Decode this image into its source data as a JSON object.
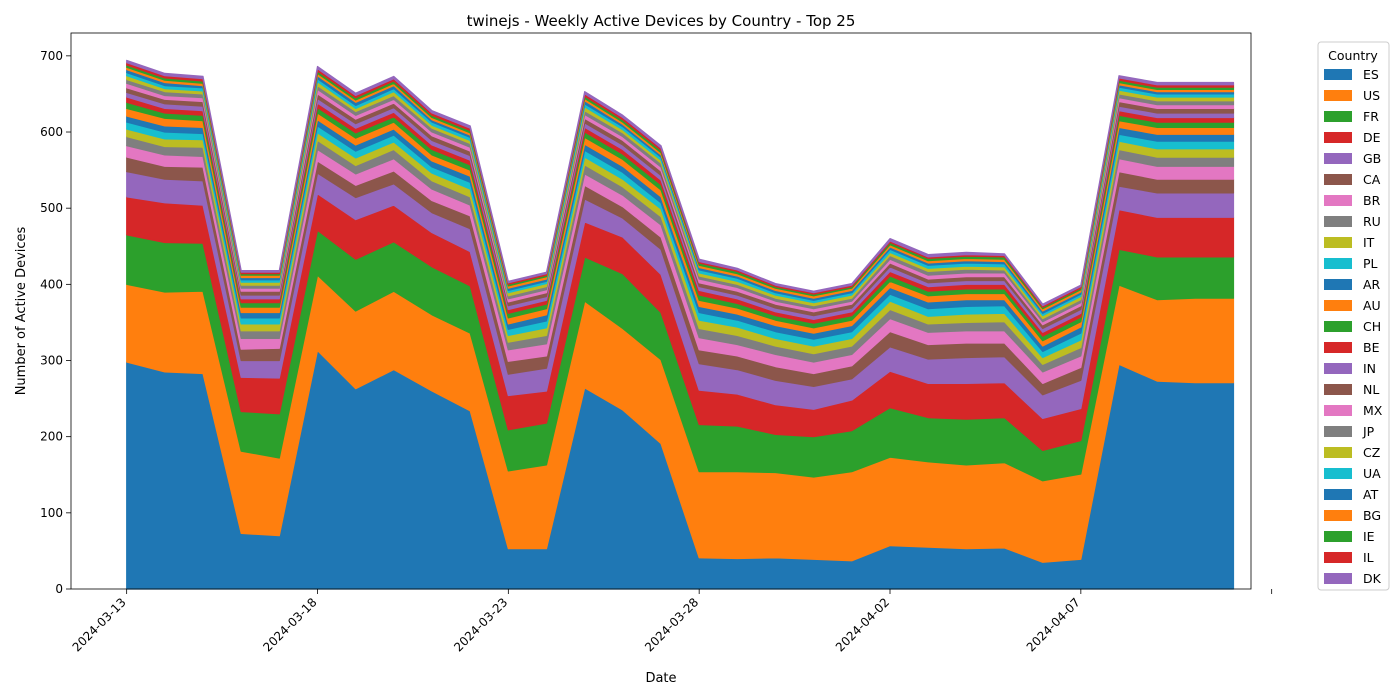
{
  "chart_data": {
    "type": "area",
    "stacked": true,
    "title": "twinejs - Weekly Active Devices by Country - Top 25",
    "xlabel": "Date",
    "ylabel": "Number of Active Devices",
    "ylim": [
      0,
      730
    ],
    "yticks": [
      0,
      100,
      200,
      300,
      400,
      500,
      600,
      700
    ],
    "xlim": [
      "2024-03-11T13:00",
      "2024-04-11T11:00"
    ],
    "xticks": [
      "2024-03-13",
      "2024-03-18",
      "2024-03-23",
      "2024-03-28",
      "2024-04-02",
      "2024-04-07",
      "2024-04-12"
    ],
    "xtick_labels": [
      "2024-03-13",
      "2024-03-18",
      "2024-03-23",
      "2024-03-28",
      "2024-04-02",
      "2024-04-07",
      ""
    ],
    "legend": {
      "title": "Country",
      "placement": "outside-right-top"
    },
    "x": [
      "2024-03-13",
      "2024-03-14",
      "2024-03-15",
      "2024-03-16",
      "2024-03-17",
      "2024-03-18",
      "2024-03-19",
      "2024-03-20",
      "2024-03-21",
      "2024-03-22",
      "2024-03-23",
      "2024-03-24",
      "2024-03-25",
      "2024-03-26",
      "2024-03-27",
      "2024-03-28",
      "2024-03-29",
      "2024-03-30",
      "2024-03-31",
      "2024-04-01",
      "2024-04-02",
      "2024-04-03",
      "2024-04-04",
      "2024-04-05",
      "2024-04-06",
      "2024-04-07",
      "2024-04-08",
      "2024-04-09",
      "2024-04-10",
      "2024-04-11"
    ],
    "series": [
      {
        "name": "ES",
        "color": "#1f77b4",
        "values": [
          298,
          285,
          283,
          73,
          70,
          313,
          263,
          288,
          260,
          234,
          53,
          53,
          264,
          235,
          191,
          41,
          40,
          41,
          39,
          37,
          57,
          55,
          53,
          54,
          35,
          39,
          295,
          273,
          271,
          271
        ]
      },
      {
        "name": "US",
        "color": "#ff7f0e",
        "values": [
          102,
          105,
          108,
          108,
          102,
          99,
          102,
          103,
          100,
          102,
          102,
          110,
          114,
          107,
          110,
          113,
          114,
          112,
          108,
          117,
          116,
          112,
          110,
          112,
          107,
          112,
          104,
          107,
          111,
          111
        ]
      },
      {
        "name": "FR",
        "color": "#2ca02c",
        "values": [
          65,
          65,
          63,
          52,
          58,
          59,
          68,
          65,
          63,
          62,
          54,
          55,
          58,
          72,
          62,
          62,
          60,
          50,
          53,
          54,
          65,
          58,
          60,
          59,
          40,
          44,
          47,
          56,
          54,
          54
        ]
      },
      {
        "name": "DE",
        "color": "#d62728",
        "values": [
          50,
          52,
          50,
          45,
          47,
          48,
          52,
          48,
          45,
          45,
          45,
          42,
          46,
          48,
          50,
          45,
          42,
          39,
          36,
          40,
          48,
          45,
          47,
          46,
          42,
          42,
          52,
          52,
          52,
          52
        ]
      },
      {
        "name": "GB",
        "color": "#9467bd",
        "values": [
          33,
          31,
          32,
          22,
          23,
          27,
          29,
          28,
          26,
          30,
          28,
          30,
          30,
          25,
          33,
          35,
          32,
          32,
          30,
          28,
          32,
          32,
          34,
          34,
          31,
          37,
          31,
          32,
          32,
          32
        ]
      },
      {
        "name": "CA",
        "color": "#8c564b",
        "values": [
          19,
          17,
          18,
          15,
          16,
          16,
          16,
          17,
          16,
          17,
          17,
          16,
          18,
          15,
          16,
          18,
          18,
          18,
          17,
          17,
          20,
          19,
          19,
          18,
          15,
          17,
          19,
          18,
          18,
          18
        ]
      },
      {
        "name": "BR",
        "color": "#e377c2",
        "values": [
          15,
          15,
          14,
          14,
          13,
          15,
          15,
          16,
          15,
          14,
          15,
          16,
          15,
          15,
          16,
          16,
          15,
          16,
          15,
          15,
          17,
          16,
          16,
          16,
          15,
          15,
          17,
          17,
          17,
          17
        ]
      },
      {
        "name": "RU",
        "color": "#7f7f7f",
        "values": [
          12,
          11,
          12,
          10,
          10,
          12,
          11,
          12,
          11,
          11,
          10,
          11,
          12,
          11,
          11,
          12,
          12,
          11,
          11,
          11,
          12,
          11,
          11,
          12,
          10,
          11,
          12,
          12,
          12,
          12
        ]
      },
      {
        "name": "IT",
        "color": "#bcbd22",
        "values": [
          10,
          10,
          10,
          9,
          9,
          10,
          10,
          10,
          10,
          10,
          9,
          10,
          10,
          10,
          10,
          11,
          11,
          10,
          10,
          10,
          11,
          10,
          11,
          11,
          9,
          10,
          11,
          11,
          11,
          11
        ]
      },
      {
        "name": "PL",
        "color": "#17becf",
        "values": [
          9,
          9,
          8,
          8,
          8,
          9,
          9,
          9,
          8,
          9,
          8,
          9,
          9,
          9,
          8,
          10,
          9,
          9,
          9,
          9,
          9,
          10,
          10,
          10,
          8,
          9,
          9,
          10,
          10,
          10
        ]
      },
      {
        "name": "AR",
        "color": "#1f77b4",
        "values": [
          8,
          8,
          8,
          7,
          7,
          8,
          8,
          8,
          8,
          8,
          7,
          8,
          8,
          8,
          8,
          8,
          8,
          8,
          8,
          8,
          9,
          9,
          9,
          8,
          7,
          8,
          9,
          9,
          9,
          9
        ]
      },
      {
        "name": "AU",
        "color": "#ff7f0e",
        "values": [
          10,
          10,
          9,
          7,
          7,
          9,
          9,
          9,
          8,
          8,
          8,
          8,
          9,
          9,
          9,
          8,
          8,
          7,
          7,
          7,
          8,
          8,
          8,
          8,
          7,
          7,
          9,
          9,
          9,
          9
        ]
      },
      {
        "name": "CH",
        "color": "#2ca02c",
        "values": [
          8,
          7,
          7,
          6,
          6,
          7,
          7,
          7,
          7,
          7,
          6,
          6,
          7,
          7,
          7,
          7,
          6,
          6,
          6,
          6,
          7,
          6,
          6,
          6,
          6,
          6,
          7,
          7,
          7,
          7
        ]
      },
      {
        "name": "BE",
        "color": "#d62728",
        "values": [
          7,
          6,
          6,
          5,
          5,
          6,
          6,
          6,
          6,
          6,
          5,
          5,
          6,
          6,
          6,
          6,
          6,
          5,
          5,
          5,
          6,
          6,
          6,
          6,
          5,
          5,
          6,
          6,
          6,
          6
        ]
      },
      {
        "name": "IN",
        "color": "#9467bd",
        "values": [
          6,
          6,
          6,
          5,
          5,
          6,
          6,
          6,
          6,
          6,
          5,
          5,
          6,
          6,
          6,
          5,
          5,
          5,
          5,
          5,
          6,
          5,
          5,
          5,
          5,
          5,
          6,
          6,
          6,
          6
        ]
      },
      {
        "name": "NL",
        "color": "#8c564b",
        "values": [
          6,
          6,
          6,
          5,
          5,
          6,
          6,
          6,
          6,
          6,
          5,
          5,
          6,
          6,
          6,
          5,
          5,
          5,
          5,
          5,
          5,
          5,
          5,
          5,
          5,
          5,
          6,
          6,
          6,
          6
        ]
      },
      {
        "name": "MX",
        "color": "#e377c2",
        "values": [
          6,
          5,
          5,
          4,
          4,
          6,
          5,
          5,
          5,
          5,
          4,
          4,
          5,
          5,
          5,
          5,
          5,
          4,
          4,
          4,
          5,
          5,
          5,
          5,
          4,
          4,
          5,
          5,
          5,
          5
        ]
      },
      {
        "name": "JP",
        "color": "#7f7f7f",
        "values": [
          5,
          5,
          5,
          4,
          4,
          5,
          5,
          5,
          5,
          5,
          4,
          4,
          5,
          5,
          5,
          4,
          4,
          4,
          4,
          4,
          5,
          5,
          5,
          4,
          4,
          4,
          5,
          5,
          5,
          5
        ]
      },
      {
        "name": "CZ",
        "color": "#bcbd22",
        "values": [
          5,
          4,
          4,
          4,
          4,
          5,
          4,
          5,
          4,
          4,
          4,
          4,
          5,
          4,
          4,
          4,
          4,
          4,
          4,
          4,
          4,
          4,
          4,
          4,
          4,
          4,
          5,
          5,
          5,
          5
        ]
      },
      {
        "name": "UA",
        "color": "#17becf",
        "values": [
          4,
          4,
          4,
          3,
          3,
          4,
          4,
          4,
          4,
          4,
          3,
          3,
          4,
          4,
          4,
          4,
          4,
          3,
          3,
          3,
          4,
          4,
          4,
          4,
          3,
          3,
          4,
          4,
          4,
          4
        ]
      },
      {
        "name": "AT",
        "color": "#1f77b4",
        "values": [
          4,
          4,
          3,
          3,
          3,
          4,
          4,
          4,
          3,
          3,
          3,
          3,
          4,
          3,
          3,
          3,
          3,
          3,
          3,
          3,
          3,
          3,
          3,
          3,
          3,
          3,
          3,
          3,
          3,
          3
        ]
      },
      {
        "name": "BG",
        "color": "#ff7f0e",
        "values": [
          3,
          3,
          3,
          3,
          3,
          3,
          3,
          3,
          3,
          3,
          3,
          3,
          3,
          3,
          3,
          3,
          3,
          3,
          3,
          3,
          3,
          3,
          3,
          3,
          3,
          3,
          3,
          3,
          3,
          3
        ]
      },
      {
        "name": "IE",
        "color": "#2ca02c",
        "values": [
          3,
          3,
          3,
          2,
          2,
          3,
          3,
          3,
          3,
          3,
          2,
          2,
          3,
          3,
          3,
          3,
          3,
          2,
          2,
          2,
          3,
          3,
          3,
          3,
          2,
          2,
          3,
          3,
          3,
          3
        ]
      },
      {
        "name": "IL",
        "color": "#d62728",
        "values": [
          3,
          3,
          3,
          2,
          2,
          3,
          3,
          3,
          3,
          3,
          2,
          2,
          3,
          3,
          3,
          2,
          2,
          2,
          2,
          2,
          2,
          2,
          2,
          2,
          2,
          2,
          3,
          3,
          3,
          3
        ]
      },
      {
        "name": "DK",
        "color": "#9467bd",
        "values": [
          3,
          3,
          3,
          2,
          2,
          3,
          3,
          3,
          3,
          3,
          2,
          2,
          3,
          3,
          3,
          3,
          2,
          2,
          2,
          2,
          3,
          3,
          3,
          2,
          2,
          2,
          3,
          3,
          3,
          3
        ]
      }
    ]
  }
}
